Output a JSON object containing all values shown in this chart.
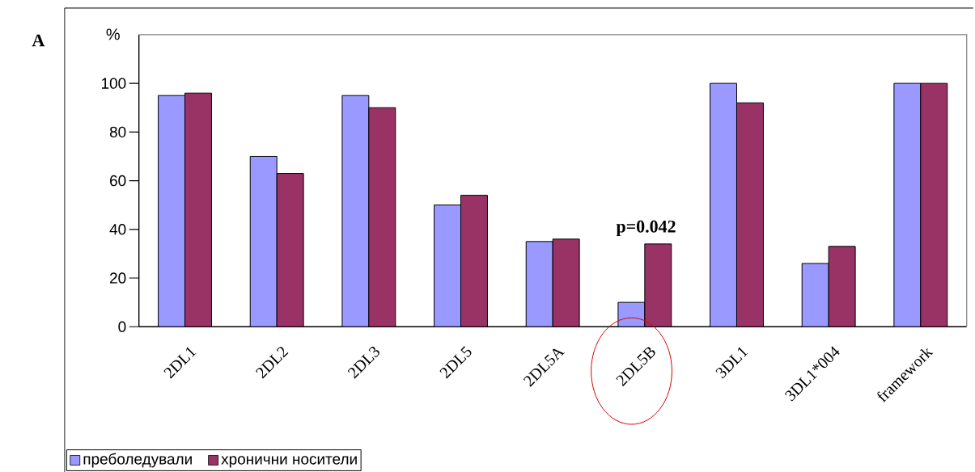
{
  "chart_data": {
    "type": "bar",
    "ylabel": "%",
    "categories": [
      "2DL1",
      "2DL2",
      "2DL3",
      "2DL5",
      "2DL5A",
      "2DL5B",
      "3DL1",
      "3DL1*004",
      "framework"
    ],
    "series": [
      {
        "name": "преболедували",
        "color": "#9999ff",
        "values": [
          95,
          70,
          95,
          50,
          35,
          10,
          100,
          26,
          100
        ]
      },
      {
        "name": "хронични носители",
        "color": "#993366",
        "values": [
          96,
          63,
          90,
          54,
          36,
          34,
          92,
          33,
          100
        ]
      }
    ],
    "ylim": [
      0,
      120
    ],
    "yticks": [
      0,
      20,
      40,
      60,
      80,
      100
    ],
    "annotations": [
      "A",
      "p=0.042"
    ],
    "legend": "bottom left"
  }
}
